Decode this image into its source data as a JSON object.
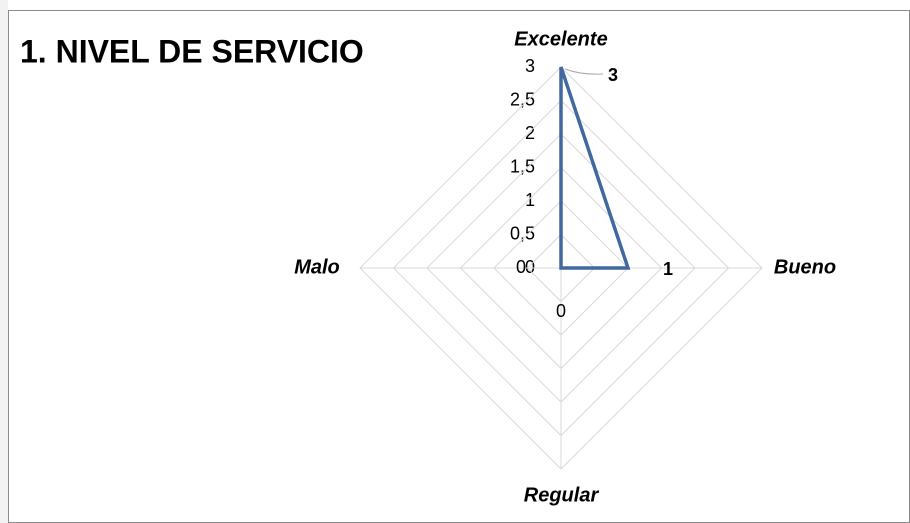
{
  "chart_data": {
    "type": "radar",
    "title": "1. NIVEL DE SERVICIO",
    "categories": [
      "Excelente",
      "Bueno",
      "Regular",
      "Malo"
    ],
    "series": [
      {
        "name": "Nivel de servicio",
        "color": "#41689f",
        "values": [
          3,
          1,
          0,
          0
        ]
      }
    ],
    "ylim": [
      0,
      3
    ],
    "yticks": [
      0,
      {
        "value": 0.5,
        "label": "0,5"
      },
      1,
      {
        "value": 1.5,
        "label": "1,5"
      },
      2,
      {
        "value": 2.5,
        "label": "2,5"
      },
      3
    ],
    "grid": true
  }
}
